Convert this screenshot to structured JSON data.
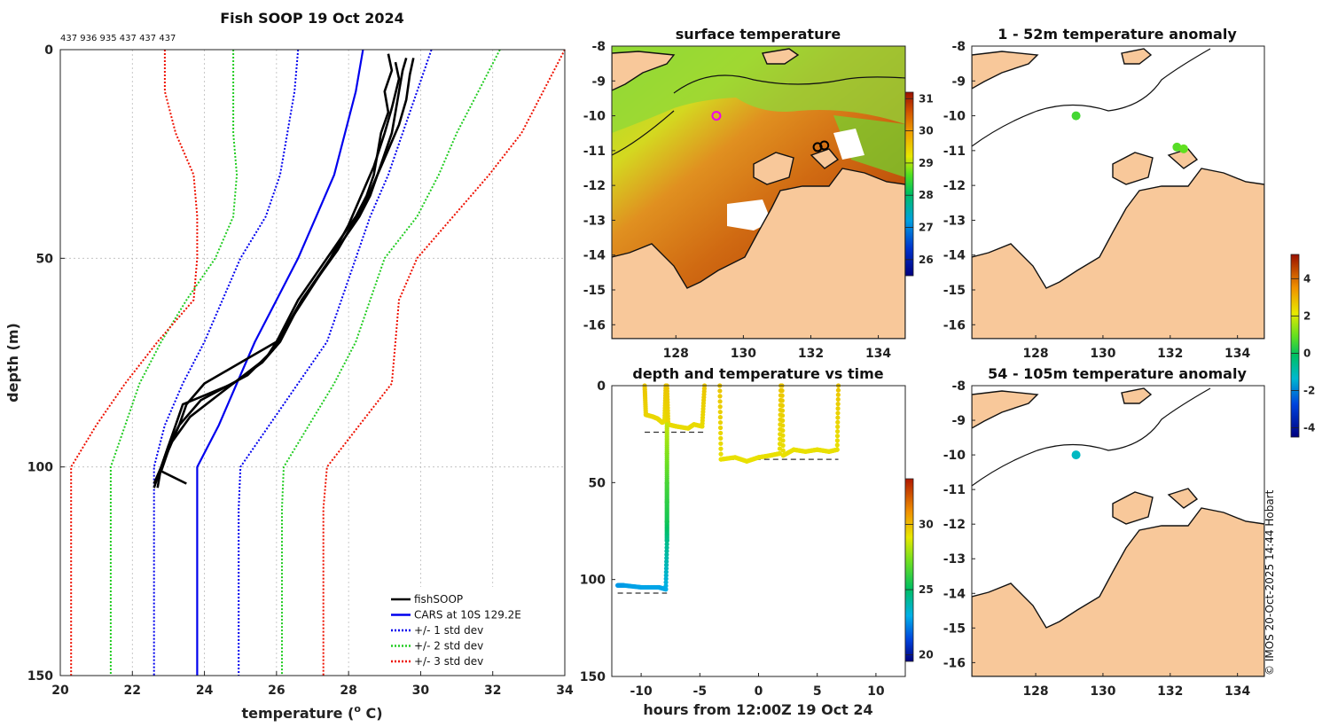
{
  "colors": {
    "fishsoop": "#000000",
    "cars": "#0000ee",
    "std1": "#0000ee",
    "std2": "#22cc22",
    "std3": "#ee1100",
    "land": "#f8c89a",
    "ocean_white": "#ffffff"
  },
  "chart_data": [
    {
      "id": "profile",
      "type": "line",
      "title": "Fish SOOP 19 Oct 2024",
      "subtitle": "437 936 935 437 437 437",
      "xlabel": "temperature (",
      "xlabel_sup": "o",
      "xlabel_end": " C)",
      "ylabel": "depth (m)",
      "xlim": [
        20,
        34
      ],
      "ylim": [
        0,
        150
      ],
      "y_reversed": true,
      "xticks": [
        20,
        22,
        24,
        26,
        28,
        30,
        32,
        34
      ],
      "yticks": [
        0,
        50,
        100,
        150
      ],
      "grid": true,
      "legend_position": "bottom-right",
      "legend": [
        {
          "label": "fishSOOP",
          "style": "solid",
          "color": "#000000"
        },
        {
          "label": "CARS at 10S 129.2E",
          "style": "solid",
          "color": "#0000ee"
        },
        {
          "label": "+/- 1 std dev",
          "style": "dotted",
          "color": "#0000ee"
        },
        {
          "label": "+/- 2 std dev",
          "style": "dotted",
          "color": "#22cc22"
        },
        {
          "label": "+/- 3 std dev",
          "style": "dotted",
          "color": "#ee1100"
        }
      ],
      "series": [
        {
          "name": "CARS mean",
          "depth": [
            0,
            10,
            20,
            30,
            40,
            50,
            60,
            70,
            80,
            90,
            100,
            110,
            120,
            130,
            140,
            150
          ],
          "temp": [
            28.4,
            28.2,
            27.9,
            27.6,
            27.1,
            26.6,
            26.0,
            25.4,
            24.9,
            24.4,
            23.8,
            23.8,
            23.8,
            23.8,
            23.8,
            23.8
          ]
        },
        {
          "name": "+1 std",
          "depth": [
            0,
            10,
            20,
            30,
            40,
            50,
            60,
            70,
            80,
            90,
            100,
            110,
            120,
            130,
            140,
            150
          ],
          "temp": [
            30.3,
            29.9,
            29.5,
            29.1,
            28.6,
            28.2,
            27.8,
            27.4,
            26.6,
            25.8,
            25.0,
            24.95,
            24.95,
            24.95,
            24.95,
            24.95
          ]
        },
        {
          "name": "-1 std",
          "depth": [
            0,
            10,
            20,
            30,
            40,
            50,
            60,
            70,
            80,
            90,
            100,
            110,
            120,
            130,
            140,
            150
          ],
          "temp": [
            26.6,
            26.5,
            26.3,
            26.1,
            25.7,
            25.0,
            24.5,
            24.0,
            23.4,
            22.9,
            22.6,
            22.6,
            22.6,
            22.6,
            22.6,
            22.6
          ]
        },
        {
          "name": "+2 std",
          "depth": [
            0,
            10,
            20,
            30,
            40,
            50,
            60,
            70,
            80,
            90,
            100,
            110,
            120,
            130,
            140,
            150
          ],
          "temp": [
            32.2,
            31.6,
            31.0,
            30.5,
            29.9,
            29.0,
            28.6,
            28.2,
            27.6,
            26.9,
            26.2,
            26.15,
            26.15,
            26.15,
            26.15,
            26.15
          ]
        },
        {
          "name": "-2 std",
          "depth": [
            0,
            10,
            20,
            30,
            40,
            50,
            60,
            70,
            80,
            90,
            100,
            110,
            120,
            130,
            140,
            150
          ],
          "temp": [
            24.8,
            24.8,
            24.8,
            24.9,
            24.8,
            24.3,
            23.5,
            22.8,
            22.2,
            21.8,
            21.4,
            21.4,
            21.4,
            21.4,
            21.4,
            21.4
          ]
        },
        {
          "name": "+3 std",
          "depth": [
            0,
            10,
            20,
            30,
            40,
            50,
            60,
            70,
            80,
            90,
            100,
            110,
            120,
            130,
            140,
            150
          ],
          "temp": [
            34.0,
            33.4,
            32.8,
            31.9,
            30.9,
            29.9,
            29.4,
            29.3,
            29.2,
            28.3,
            27.4,
            27.3,
            27.3,
            27.3,
            27.3,
            27.3
          ]
        },
        {
          "name": "-3 std",
          "depth": [
            0,
            10,
            20,
            30,
            40,
            50,
            60,
            70,
            80,
            90,
            100,
            110,
            120,
            130,
            140,
            150
          ],
          "temp": [
            22.9,
            22.9,
            23.2,
            23.7,
            23.8,
            23.8,
            23.7,
            22.7,
            21.8,
            21.0,
            20.3,
            20.3,
            20.3,
            20.3,
            20.3,
            20.3
          ]
        },
        {
          "name": "fishSOOP 1",
          "depth": [
            1,
            5,
            10,
            15,
            20,
            25,
            30,
            35,
            40,
            45,
            50,
            55,
            60,
            65,
            70,
            75,
            80,
            85,
            90,
            95,
            100,
            104
          ],
          "temp": [
            29.1,
            29.2,
            29.0,
            29.1,
            28.9,
            28.8,
            28.7,
            28.5,
            28.2,
            27.8,
            27.4,
            27.0,
            26.6,
            26.3,
            26.0,
            25.0,
            24.0,
            23.5,
            23.3,
            23.0,
            22.8,
            22.6
          ]
        },
        {
          "name": "fishSOOP 2",
          "depth": [
            2,
            5,
            10,
            15,
            20,
            25,
            30,
            35,
            40,
            45,
            50,
            55,
            60,
            65,
            70,
            75,
            80,
            85,
            90,
            95,
            100,
            105
          ],
          "temp": [
            29.6,
            29.5,
            29.4,
            29.3,
            29.2,
            29.0,
            28.8,
            28.6,
            28.3,
            27.9,
            27.5,
            27.1,
            26.7,
            26.4,
            26.1,
            25.6,
            24.8,
            23.4,
            23.2,
            23.0,
            22.8,
            22.6
          ]
        },
        {
          "name": "fishSOOP 3",
          "depth": [
            2,
            6,
            12,
            18,
            24,
            30,
            36,
            42,
            48,
            54,
            60,
            66,
            72,
            78,
            84,
            90,
            96,
            101,
            104
          ],
          "temp": [
            29.8,
            29.7,
            29.6,
            29.4,
            29.1,
            28.8,
            28.5,
            28.1,
            27.7,
            27.2,
            26.7,
            26.3,
            25.9,
            25.2,
            23.9,
            23.3,
            23.0,
            22.8,
            23.5
          ]
        },
        {
          "name": "fishSOOP 4",
          "depth": [
            3,
            7,
            14,
            20,
            28,
            36,
            42,
            50,
            58,
            66,
            74,
            82,
            88,
            94,
            100,
            105
          ],
          "temp": [
            29.3,
            29.4,
            29.2,
            29.0,
            28.7,
            28.3,
            28.0,
            27.5,
            26.9,
            26.3,
            25.7,
            24.5,
            23.6,
            23.1,
            22.8,
            22.7
          ]
        }
      ]
    },
    {
      "id": "sst-map",
      "type": "heatmap",
      "title": "surface temperature",
      "xticks": [
        128,
        130,
        132,
        134
      ],
      "yticks": [
        -8,
        -9,
        -10,
        -11,
        -12,
        -13,
        -14,
        -15,
        -16
      ],
      "xlim": [
        126.1,
        134.8
      ],
      "ylim": [
        -16.4,
        -8
      ],
      "colorbar": {
        "min": 25.5,
        "max": 31.2,
        "ticks": [
          31,
          30,
          29,
          28,
          27,
          26
        ]
      },
      "profile_markers": [
        {
          "lon": 129.2,
          "lat": -10.0,
          "color": "#ee00ee"
        },
        {
          "lon": 132.2,
          "lat": -10.9,
          "color": "#000000"
        },
        {
          "lon": 132.4,
          "lat": -10.85,
          "color": "#000000"
        }
      ]
    },
    {
      "id": "depth-time",
      "type": "scatter",
      "title": "depth and temperature vs time",
      "xlabel": "hours from 12:00Z 19 Oct 24",
      "xlim": [
        -12.5,
        12.5
      ],
      "ylim": [
        0,
        150
      ],
      "y_reversed": true,
      "xticks": [
        -10,
        -5,
        0,
        5,
        10
      ],
      "yticks": [
        0,
        50,
        100,
        150
      ],
      "colorbar": {
        "min": 19.5,
        "max": 33.5,
        "ticks": [
          30,
          25,
          20
        ]
      },
      "series": [
        {
          "name": "cast 1",
          "hours": [
            -9.7,
            -9.6,
            -9.0,
            -8.6,
            -8.2,
            -8.0,
            -7.9
          ],
          "depth": [
            0,
            15,
            16,
            17,
            19,
            18,
            0
          ],
          "temp": [
            29.8,
            29.5,
            29.4,
            29.4,
            29.3,
            29.3,
            29.8
          ]
        },
        {
          "name": "cast 2",
          "hours": [
            -7.8,
            -7.7,
            -7.0,
            -6.0,
            -5.5,
            -4.8,
            -4.6
          ],
          "depth": [
            0,
            20,
            21,
            22,
            20,
            21,
            0
          ],
          "temp": [
            29.8,
            29.4,
            29.3,
            29.3,
            29.3,
            29.3,
            29.8
          ]
        },
        {
          "name": "cast 3",
          "hours": [
            -7.8,
            -7.8,
            -7.8,
            -7.8,
            -7.8,
            -7.8,
            -7.9,
            -8.5,
            -10.0,
            -11.5,
            -12.0
          ],
          "depth": [
            20,
            35,
            50,
            60,
            70,
            80,
            105,
            104,
            104,
            103,
            103
          ],
          "temp": [
            28.5,
            27.5,
            26.5,
            26.0,
            25.5,
            24.5,
            23.0,
            22.8,
            22.8,
            22.7,
            22.6
          ]
        },
        {
          "name": "cast 4",
          "hours": [
            -3.3,
            -3.2,
            -2.0,
            -1.0,
            0.0,
            1.0,
            1.8,
            1.9
          ],
          "depth": [
            0,
            38,
            37,
            39,
            37,
            36,
            35,
            0
          ],
          "temp": [
            29.8,
            29.2,
            29.2,
            29.2,
            29.2,
            29.2,
            29.2,
            29.8
          ]
        },
        {
          "name": "cast 5",
          "hours": [
            2.0,
            2.1,
            3.0,
            4.0,
            5.0,
            6.0,
            6.7,
            6.8
          ],
          "depth": [
            0,
            36,
            33,
            34,
            33,
            34,
            33,
            0
          ],
          "temp": [
            29.8,
            29.2,
            29.2,
            29.2,
            29.2,
            29.2,
            29.2,
            29.8
          ]
        }
      ],
      "bottom_depth": [
        {
          "hours": [
            -9.7,
            -4.5
          ],
          "depth": 24
        },
        {
          "hours": [
            -3.3,
            6.8
          ],
          "depth": 38
        },
        {
          "hours": [
            -12.0,
            -7.8
          ],
          "depth": 107
        }
      ]
    },
    {
      "id": "anom-map-1",
      "type": "scatter",
      "title": "1 - 52m temperature anomaly",
      "xticks": [
        128,
        130,
        132,
        134
      ],
      "yticks": [
        -8,
        -9,
        -10,
        -11,
        -12,
        -13,
        -14,
        -15,
        -16
      ],
      "points": [
        {
          "lon": 129.2,
          "lat": -10.0,
          "anomaly": 0.6
        },
        {
          "lon": 132.2,
          "lat": -10.9,
          "anomaly": 0.8
        },
        {
          "lon": 132.4,
          "lat": -10.95,
          "anomaly": 0.9
        }
      ]
    },
    {
      "id": "anom-map-2",
      "type": "scatter",
      "title": "54 - 105m temperature anomaly",
      "xticks": [
        128,
        130,
        132,
        134
      ],
      "yticks": [
        -8,
        -9,
        -10,
        -11,
        -12,
        -13,
        -14,
        -15,
        -16
      ],
      "points": [
        {
          "lon": 129.2,
          "lat": -10.0,
          "anomaly": -1.2
        }
      ]
    },
    {
      "id": "anom-colorbar",
      "type": "heatmap",
      "colorbar": {
        "min": -4.5,
        "max": 5.3,
        "ticks": [
          4,
          2,
          0,
          -2,
          -4
        ]
      }
    }
  ],
  "credit": "© IMOS 20-Oct-2025 14:44 Hobart"
}
